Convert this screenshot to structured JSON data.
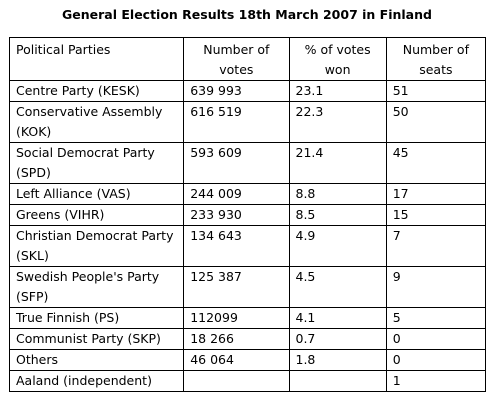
{
  "title": "General Election Results 18th March 2007 in Finland",
  "headers": {
    "party": "Political Parties",
    "votes": "Number of votes",
    "pct": "% of votes won",
    "seats": "Number of seats"
  },
  "rows": [
    {
      "party": "Centre Party (KESK)",
      "votes": "639 993",
      "pct": "23.1",
      "seats": "51"
    },
    {
      "party": "Conservative Assembly (KOK)",
      "votes": "616 519",
      "pct": "22.3",
      "seats": "50"
    },
    {
      "party": "Social Democrat Party (SPD)",
      "votes": "593 609",
      "pct": "21.4",
      "seats": "45"
    },
    {
      "party": "Left Alliance (VAS)",
      "votes": "244 009",
      "pct": "8.8",
      "seats": "17"
    },
    {
      "party": "Greens (VIHR)",
      "votes": "233 930",
      "pct": "8.5",
      "seats": "15"
    },
    {
      "party": "Christian Democrat Party (SKL)",
      "votes": "134 643",
      "pct": "4.9",
      "seats": "7"
    },
    {
      "party": "Swedish People's Party (SFP)",
      "votes": "125 387",
      "pct": "4.5",
      "seats": "9"
    },
    {
      "party": "True Finnish (PS)",
      "votes": "112099",
      "pct": "4.1",
      "seats": "5"
    },
    {
      "party": "Communist Party (SKP)",
      "votes": "18 266",
      "pct": "0.7",
      "seats": "0"
    },
    {
      "party": "Others",
      "votes": "46 064",
      "pct": "1.8",
      "seats": "0"
    },
    {
      "party": "Aaland (independent)",
      "votes": "",
      "pct": "",
      "seats": "1"
    }
  ]
}
